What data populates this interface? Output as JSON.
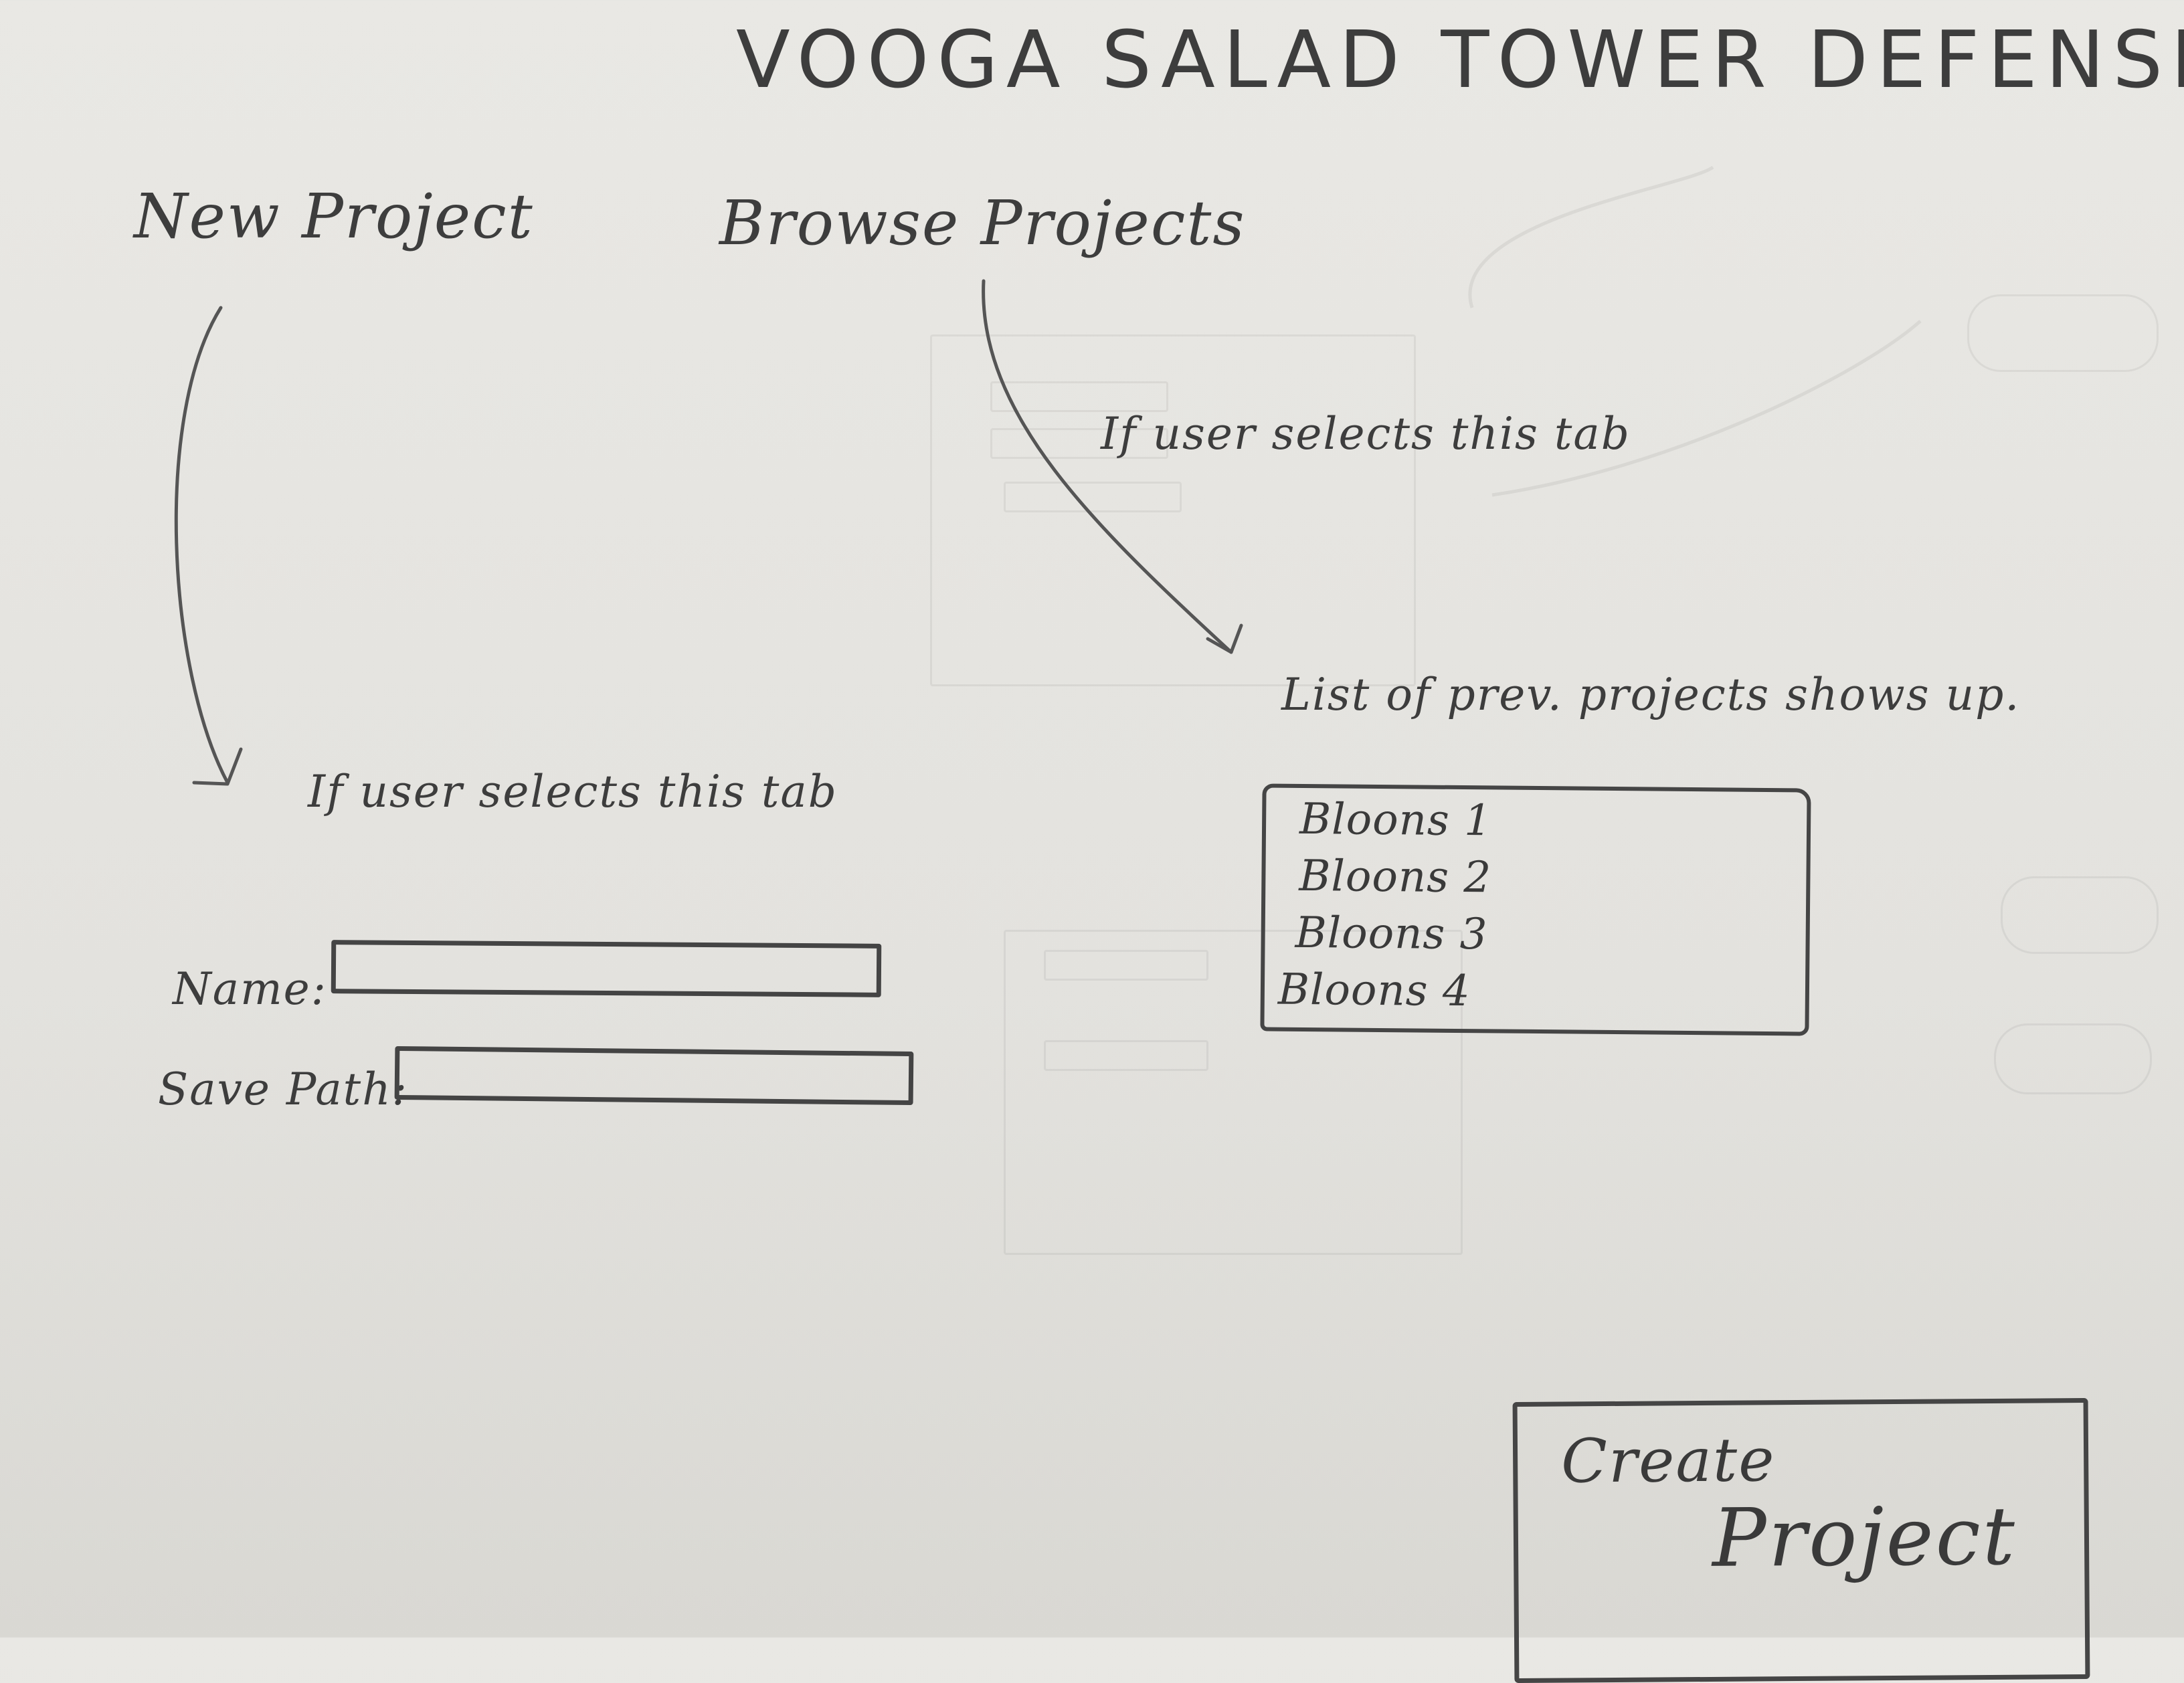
{
  "title": "VOOGA SALAD TOWER DEFENSE",
  "tabs": [
    {
      "label": "New Project"
    },
    {
      "label": "Browse Projects"
    }
  ],
  "notes": {
    "browse_tab": "If user selects this tab",
    "new_tab": "If user selects this tab",
    "list_caption": "List of prev. projects shows up."
  },
  "new_project_form": {
    "name_label": "Name:",
    "name_value": "",
    "save_path_label": "Save Path:",
    "save_path_value": ""
  },
  "previous_projects": [
    {
      "label": "Bloons 1"
    },
    {
      "label": "Bloons 2"
    },
    {
      "label": "Bloons 3"
    },
    {
      "label": "Bloons 4"
    }
  ],
  "create_button": {
    "line1": "Create",
    "line2": "Project"
  }
}
